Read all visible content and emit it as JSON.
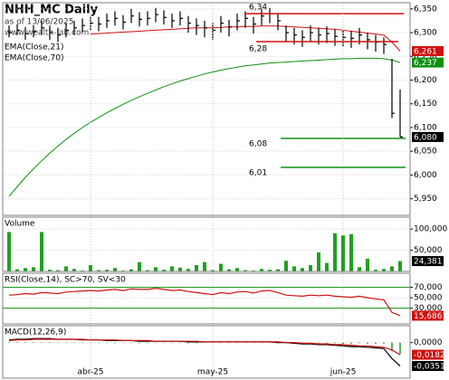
{
  "chart_data": [
    {
      "type": "candlestick",
      "title": "NHH_MC Daily",
      "subtitle": "as of 13/06/2025",
      "source": "www.wealth-lab.com",
      "categories": [
        null,
        null,
        null,
        null,
        null,
        null,
        null,
        null,
        null,
        null,
        "abr-25",
        null,
        null,
        null,
        null,
        null,
        null,
        null,
        null,
        null,
        null,
        null,
        null,
        null,
        null,
        "may-25",
        null,
        null,
        null,
        null,
        null,
        null,
        null,
        null,
        null,
        null,
        null,
        null,
        null,
        null,
        null,
        "jun-25",
        null,
        null,
        null,
        null,
        null,
        null,
        null
      ],
      "high": [
        6315,
        6318,
        6312,
        6316,
        6325,
        6315,
        6310,
        6320,
        6325,
        6330,
        6335,
        6333,
        6340,
        6345,
        6337,
        6350,
        6343,
        6345,
        6352,
        6347,
        6340,
        6345,
        6335,
        6330,
        6325,
        6320,
        6335,
        6327,
        6340,
        6345,
        6333,
        6350,
        6352,
        6340,
        6315,
        6310,
        6305,
        6315,
        6310,
        6313,
        6307,
        6305,
        6303,
        6310,
        6300,
        6295,
        6290,
        6245,
        6180
      ],
      "low": [
        6290,
        6295,
        6285,
        6290,
        6295,
        6285,
        6280,
        6290,
        6295,
        6300,
        6305,
        6303,
        6310,
        6315,
        6307,
        6320,
        6313,
        6315,
        6322,
        6317,
        6310,
        6315,
        6300,
        6295,
        6290,
        6285,
        6300,
        6292,
        6305,
        6310,
        6298,
        6315,
        6320,
        6305,
        6280,
        6275,
        6270,
        6280,
        6275,
        6278,
        6272,
        6270,
        6268,
        6275,
        6265,
        6260,
        6255,
        6120,
        6080
      ],
      "close": [
        6300,
        6305,
        6298,
        6302,
        6310,
        6300,
        6295,
        6305,
        6310,
        6315,
        6320,
        6318,
        6325,
        6330,
        6322,
        6335,
        6328,
        6330,
        6338,
        6332,
        6325,
        6330,
        6320,
        6315,
        6310,
        6305,
        6320,
        6312,
        6325,
        6330,
        6318,
        6335,
        6340,
        6325,
        6300,
        6295,
        6290,
        6300,
        6295,
        6298,
        6292,
        6290,
        6288,
        6295,
        6285,
        6280,
        6275,
        6130,
        6080
      ],
      "close_labels": [
        null,
        null,
        null,
        null,
        null,
        null,
        null,
        null,
        null,
        null,
        null,
        null,
        null,
        null,
        null,
        null,
        null,
        null,
        null,
        null,
        null,
        null,
        null,
        null,
        null,
        null,
        null,
        null,
        null,
        null,
        null,
        null,
        null,
        null,
        null,
        null,
        null,
        null,
        null,
        null,
        null,
        null,
        null,
        null,
        null,
        null,
        null,
        null,
        "6,080"
      ],
      "color": "#000000",
      "series": [
        {
          "name": "EMA(Close,21)",
          "color": "#d01010",
          "values": [
            null,
            null,
            null,
            null,
            null,
            null,
            null,
            null,
            null,
            null,
            6297,
            6298,
            6299,
            6300,
            6301,
            6302,
            6303,
            6304,
            6305,
            6306,
            6307,
            6308,
            6309,
            6310,
            6310,
            6310,
            6311,
            6312,
            6312,
            6313,
            6313,
            6314,
            6314,
            6314,
            6313,
            6312,
            6311,
            6310,
            6309,
            6308,
            6307,
            6305,
            6303,
            6301,
            6299,
            6297,
            6295,
            6280,
            6261
          ],
          "value_labels": [
            null,
            null,
            null,
            null,
            null,
            null,
            null,
            null,
            null,
            null,
            null,
            null,
            null,
            null,
            null,
            null,
            null,
            null,
            null,
            null,
            null,
            null,
            null,
            null,
            null,
            null,
            null,
            null,
            null,
            null,
            null,
            null,
            null,
            null,
            null,
            null,
            null,
            null,
            null,
            null,
            null,
            null,
            null,
            null,
            null,
            null,
            null,
            null,
            "6,261"
          ]
        },
        {
          "name": "EMA(Close,70)",
          "color": "#109010",
          "values": [
            5955,
            5975,
            5995,
            6013,
            6030,
            6046,
            6061,
            6075,
            6088,
            6100,
            6111,
            6121,
            6131,
            6140,
            6149,
            6157,
            6165,
            6172,
            6179,
            6186,
            6192,
            6198,
            6203,
            6208,
            6213,
            6217,
            6221,
            6224,
            6227,
            6230,
            6232,
            6234,
            6236,
            6237,
            6238,
            6239,
            6240,
            6241,
            6242,
            6243,
            6244,
            6245,
            6245,
            6246,
            6246,
            6246,
            6245,
            6242,
            6237
          ],
          "value_labels": [
            null,
            null,
            null,
            null,
            null,
            null,
            null,
            null,
            null,
            null,
            null,
            null,
            null,
            null,
            null,
            null,
            null,
            null,
            null,
            null,
            null,
            null,
            null,
            null,
            null,
            null,
            null,
            null,
            null,
            null,
            null,
            null,
            null,
            null,
            null,
            null,
            null,
            null,
            null,
            null,
            null,
            null,
            null,
            null,
            null,
            null,
            null,
            null,
            "6,237"
          ]
        }
      ],
      "levels": [
        {
          "value": 6340,
          "label": "6,34",
          "color": "#d01010"
        },
        {
          "value": 6281,
          "label": "6,28",
          "color": "#d01010"
        },
        {
          "value": 6077,
          "label": "6,08",
          "color": "#109010"
        },
        {
          "value": 6016,
          "label": "6,01",
          "color": "#109010"
        }
      ],
      "ylim": [
        5915,
        6363
      ],
      "yticks": [
        {
          "value": 5950,
          "label": "5,950"
        },
        {
          "value": 6000,
          "label": "6,000"
        },
        {
          "value": 6050,
          "label": "6,050"
        },
        {
          "value": 6100,
          "label": "6,100"
        },
        {
          "value": 6150,
          "label": "6,150"
        },
        {
          "value": 6200,
          "label": "6,200"
        },
        {
          "value": 6250,
          "label": "6,250"
        },
        {
          "value": 6300,
          "label": "6,300"
        },
        {
          "value": 6350,
          "label": "6,350"
        }
      ],
      "grid": true
    },
    {
      "type": "bar",
      "title": "Volume",
      "color": "#22a022",
      "values": [
        93000,
        5000,
        8000,
        10000,
        93000,
        4000,
        3000,
        12000,
        6000,
        2000,
        15000,
        3000,
        4000,
        8000,
        2000,
        5000,
        22000,
        3000,
        10000,
        4000,
        12000,
        9000,
        6000,
        15000,
        22000,
        3000,
        18000,
        5000,
        8000,
        3000,
        2000,
        6000,
        4000,
        5000,
        25000,
        12000,
        8000,
        15000,
        45000,
        20000,
        90000,
        85000,
        88000,
        10000,
        30000,
        4000,
        6000,
        12000,
        24381
      ],
      "value_labels": [
        null,
        null,
        null,
        null,
        null,
        null,
        null,
        null,
        null,
        null,
        null,
        null,
        null,
        null,
        null,
        null,
        null,
        null,
        null,
        null,
        null,
        null,
        null,
        null,
        null,
        null,
        null,
        null,
        null,
        null,
        null,
        null,
        null,
        null,
        null,
        null,
        null,
        null,
        null,
        null,
        null,
        null,
        null,
        null,
        null,
        null,
        null,
        null,
        "24,381"
      ],
      "ylim": [
        0,
        128000
      ],
      "yticks": [
        {
          "value": 50000,
          "label": "50,000"
        },
        {
          "value": 100000,
          "label": "100,000"
        }
      ],
      "grid": true
    },
    {
      "type": "line",
      "title": "RSI(Close,14), SC>70, SV<30",
      "series": [
        {
          "color": "#d01010",
          "values": [
            55,
            56,
            58,
            57,
            60,
            59,
            58,
            61,
            62,
            63,
            64,
            63,
            65,
            66,
            64,
            67,
            66,
            66,
            68,
            66,
            64,
            65,
            62,
            60,
            58,
            56,
            60,
            58,
            61,
            62,
            59,
            63,
            64,
            60,
            55,
            54,
            53,
            55,
            54,
            55,
            53,
            52,
            51,
            53,
            50,
            48,
            46,
            22,
            15.6861
          ],
          "value_labels": [
            null,
            null,
            null,
            null,
            null,
            null,
            null,
            null,
            null,
            null,
            null,
            null,
            null,
            null,
            null,
            null,
            null,
            null,
            null,
            null,
            null,
            null,
            null,
            null,
            null,
            null,
            null,
            null,
            null,
            null,
            null,
            null,
            null,
            null,
            null,
            null,
            null,
            null,
            null,
            null,
            null,
            null,
            null,
            null,
            null,
            null,
            null,
            null,
            "15,6861"
          ]
        }
      ],
      "levels": [
        {
          "value": 70,
          "color": "#109010"
        },
        {
          "value": 30,
          "color": "#109010"
        }
      ],
      "ylim": [
        0,
        97
      ],
      "yticks": [
        {
          "value": 30,
          "label": "30,000"
        },
        {
          "value": 50,
          "label": "50,000"
        },
        {
          "value": 70,
          "label": "70,000"
        }
      ],
      "grid": true
    },
    {
      "type": "line",
      "title": "MACD(12,26,9)",
      "series": [
        {
          "color": "#000000",
          "values": [
            0.004,
            0.005,
            0.005,
            0.006,
            0.006,
            0.006,
            0.005,
            0.005,
            0.005,
            0.004,
            0.004,
            0.004,
            0.003,
            0.003,
            0.003,
            0.003,
            0.002,
            0.002,
            0.002,
            0.002,
            0.002,
            0.002,
            0.001,
            0.001,
            0.001,
            0.001,
            0.001,
            0.001,
            0.001,
            0.001,
            0.001,
            0.001,
            0.001,
            0,
            0,
            -0.001,
            -0.002,
            -0.002,
            -0.003,
            -0.003,
            -0.004,
            -0.005,
            -0.006,
            -0.006,
            -0.007,
            -0.008,
            -0.009,
            -0.024,
            -0.0351
          ],
          "value_labels": [
            null,
            null,
            null,
            null,
            null,
            null,
            null,
            null,
            null,
            null,
            null,
            null,
            null,
            null,
            null,
            null,
            null,
            null,
            null,
            null,
            null,
            null,
            null,
            null,
            null,
            null,
            null,
            null,
            null,
            null,
            null,
            null,
            null,
            null,
            null,
            null,
            null,
            null,
            null,
            null,
            null,
            null,
            null,
            null,
            null,
            null,
            null,
            null,
            "-0,0351"
          ]
        },
        {
          "color": "#d01010",
          "values": [
            0.003,
            0.004,
            0.004,
            0.005,
            0.005,
            0.005,
            0.005,
            0.005,
            0.005,
            0.005,
            0.004,
            0.004,
            0.004,
            0.004,
            0.003,
            0.003,
            0.003,
            0.003,
            0.002,
            0.002,
            0.002,
            0.002,
            0.002,
            0.002,
            0.001,
            0.001,
            0.001,
            0.001,
            0.001,
            0.001,
            0.001,
            0.001,
            0.001,
            0.001,
            0,
            0,
            -0.001,
            -0.001,
            -0.002,
            -0.002,
            -0.003,
            -0.003,
            -0.004,
            -0.005,
            -0.005,
            -0.006,
            -0.007,
            -0.011,
            -0.0182
          ],
          "value_labels": [
            null,
            null,
            null,
            null,
            null,
            null,
            null,
            null,
            null,
            null,
            null,
            null,
            null,
            null,
            null,
            null,
            null,
            null,
            null,
            null,
            null,
            null,
            null,
            null,
            null,
            null,
            null,
            null,
            null,
            null,
            null,
            null,
            null,
            null,
            null,
            null,
            null,
            null,
            null,
            null,
            null,
            null,
            null,
            null,
            null,
            null,
            null,
            null,
            "-0,0182"
          ]
        }
      ],
      "histogram": {
        "color": "#22a022",
        "values": [
          0.001,
          0.001,
          0.001,
          0.001,
          0.001,
          0.001,
          0,
          0,
          0,
          -0.001,
          0,
          0,
          -0.001,
          -0.001,
          0,
          0,
          -0.001,
          -0.001,
          0,
          0,
          0,
          0,
          -0.001,
          -0.001,
          0,
          0,
          0,
          0,
          0,
          0,
          0,
          0,
          0,
          -0.001,
          0,
          -0.001,
          -0.001,
          -0.001,
          -0.001,
          -0.001,
          -0.001,
          -0.002,
          -0.002,
          -0.001,
          -0.002,
          -0.002,
          -0.002,
          -0.013,
          -0.0169
        ]
      },
      "ylim": [
        -0.0534,
        0.0253
      ],
      "yticks": [
        {
          "value": 0,
          "label": "0,0000"
        }
      ],
      "grid": true
    }
  ]
}
